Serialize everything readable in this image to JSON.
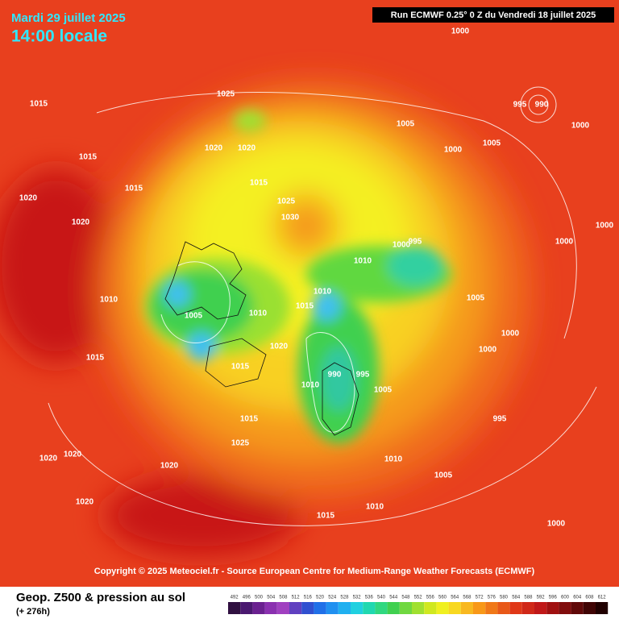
{
  "header": {
    "date": "Mardi 29 juillet 2025",
    "time": "14:00 locale",
    "run": "Run ECMWF 0.25° 0 Z du Vendredi 18 juillet 2025"
  },
  "map": {
    "isobar_labels": [
      1000,
      1025,
      1015,
      995,
      990,
      1000,
      1005,
      1000,
      1005,
      1015,
      1020,
      1020,
      1015,
      1015,
      1025,
      1030,
      1020,
      1020,
      1010,
      1000,
      995,
      1010,
      1010,
      1015,
      1005,
      1010,
      1015,
      1020,
      1015,
      1010,
      990,
      995,
      1005,
      1015,
      1025,
      1020,
      1020,
      1020,
      1020,
      1015,
      1010,
      1010,
      1005,
      1000,
      1005,
      1000,
      1000,
      1000,
      995,
      1000
    ]
  },
  "copyright": "Copyright © 2025 Meteociel.fr - Source European Centre for Medium-Range Weather Forecasts (ECMWF)",
  "legend": {
    "title": "Geop. Z500 & pression au sol",
    "lead": "(+ 276h)",
    "ticks": [
      492,
      496,
      500,
      504,
      508,
      512,
      516,
      520,
      524,
      528,
      532,
      536,
      540,
      544,
      548,
      552,
      556,
      560,
      564,
      568,
      572,
      576,
      580,
      584,
      588,
      592,
      596,
      600,
      604,
      608,
      612
    ]
  }
}
